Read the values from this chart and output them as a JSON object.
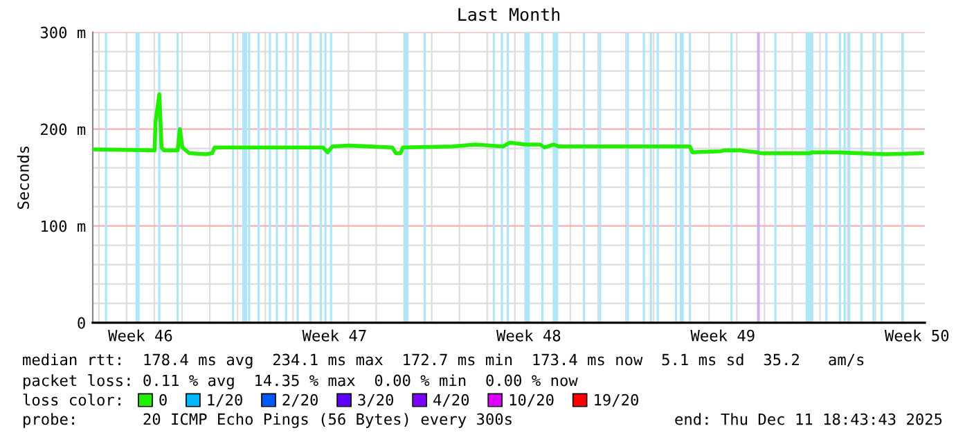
{
  "chart_data": {
    "type": "line",
    "title": "Last Month",
    "ylabel": "Seconds",
    "legend_title": "loss color:",
    "xlim": [
      "2025-11-11T18:43",
      "2025-12-11T18:43"
    ],
    "ylim": [
      0,
      300
    ],
    "xticks": [
      {
        "value": "2025-11-12T00:00",
        "label": null
      },
      {
        "value": "2025-11-13T00:00",
        "label": null
      },
      {
        "value": "2025-11-13T12:00",
        "label": "Week 46"
      },
      {
        "value": "2025-11-14T00:00",
        "label": null
      },
      {
        "value": "2025-11-15T00:00",
        "label": null
      },
      {
        "value": "2025-11-16T00:00",
        "label": null
      },
      {
        "value": "2025-11-17T00:00",
        "label": null
      },
      {
        "value": "2025-11-18T00:00",
        "label": null
      },
      {
        "value": "2025-11-19T00:00",
        "label": null
      },
      {
        "value": "2025-11-20T00:00",
        "label": null
      },
      {
        "value": "2025-11-20T12:00",
        "label": "Week 47"
      },
      {
        "value": "2025-11-21T00:00",
        "label": null
      },
      {
        "value": "2025-11-22T00:00",
        "label": null
      },
      {
        "value": "2025-11-23T00:00",
        "label": null
      },
      {
        "value": "2025-11-24T00:00",
        "label": null
      },
      {
        "value": "2025-11-25T00:00",
        "label": null
      },
      {
        "value": "2025-11-26T00:00",
        "label": null
      },
      {
        "value": "2025-11-27T00:00",
        "label": null
      },
      {
        "value": "2025-11-27T12:00",
        "label": "Week 48"
      },
      {
        "value": "2025-11-28T00:00",
        "label": null
      },
      {
        "value": "2025-11-29T00:00",
        "label": null
      },
      {
        "value": "2025-11-30T00:00",
        "label": null
      },
      {
        "value": "2025-12-01T00:00",
        "label": null
      },
      {
        "value": "2025-12-02T00:00",
        "label": null
      },
      {
        "value": "2025-12-03T00:00",
        "label": null
      },
      {
        "value": "2025-12-04T00:00",
        "label": null
      },
      {
        "value": "2025-12-04T12:00",
        "label": "Week 49"
      },
      {
        "value": "2025-12-05T00:00",
        "label": null
      },
      {
        "value": "2025-12-06T00:00",
        "label": null
      },
      {
        "value": "2025-12-07T00:00",
        "label": null
      },
      {
        "value": "2025-12-08T00:00",
        "label": null
      },
      {
        "value": "2025-12-09T00:00",
        "label": null
      },
      {
        "value": "2025-12-10T00:00",
        "label": null
      },
      {
        "value": "2025-12-11T00:00",
        "label": null
      },
      {
        "value": "2025-12-11T12:00",
        "label": "Week 50"
      }
    ],
    "yticks": [
      0,
      {
        "value": 20,
        "label": null
      },
      {
        "value": 40,
        "label": null
      },
      {
        "value": 60,
        "label": null
      },
      {
        "value": 80,
        "label": null
      },
      {
        "value": 100,
        "label": "100 m"
      },
      {
        "value": 120,
        "label": null
      },
      {
        "value": 140,
        "label": null
      },
      {
        "value": 160,
        "label": null
      },
      {
        "value": 180,
        "label": null
      },
      {
        "value": 200,
        "label": "200 m"
      },
      {
        "value": 220,
        "label": null
      },
      {
        "value": 240,
        "label": null
      },
      {
        "value": 260,
        "label": null
      },
      {
        "value": 280,
        "label": null
      },
      {
        "value": 300,
        "label": "300 m"
      }
    ],
    "grid": true,
    "legend": "bottom",
    "series": [
      {
        "name": "0",
        "color": "#22ee00",
        "x": [
          "2025-11-11T19:00",
          "2025-11-14T00:15",
          "2025-11-14T01:00",
          "2025-11-14T04:20",
          "2025-11-14T06:15",
          "2025-11-14T08:10",
          "2025-11-14T20:10",
          "2025-11-14T22:05",
          "2025-11-15T00:15",
          "2025-11-15T06:15",
          "2025-11-15T20:10",
          "2025-11-16T02:10",
          "2025-11-16T04:05",
          "2025-11-20T01:55",
          "2025-11-20T06:00",
          "2025-11-20T10:05",
          "2025-11-21T00:00",
          "2025-11-22T13:55",
          "2025-11-22T17:00",
          "2025-11-22T21:05",
          "2025-11-22T23:00",
          "2025-11-24T18:00",
          "2025-11-25T13:40",
          "2025-11-26T13:40",
          "2025-11-26T19:40",
          "2025-11-27T08:55",
          "2025-11-27T21:50",
          "2025-11-28T01:40",
          "2025-11-28T09:50",
          "2025-11-28T13:40",
          "2025-11-30T17:45",
          "2025-12-01T21:35",
          "2025-12-03T07:25",
          "2025-12-03T09:35",
          "2025-12-04T09:35",
          "2025-12-04T13:25",
          "2025-12-05T03:20",
          "2025-12-05T09:20",
          "2025-12-05T17:30",
          "2025-12-05T21:20",
          "2025-12-07T15:20",
          "2025-12-07T17:30",
          "2025-12-08T13:25",
          "2025-12-09T11:15",
          "2025-12-10T09:20",
          "2025-12-11T16:20"
        ],
        "values": [
          179,
          178,
          207,
          236,
          181,
          178,
          178,
          200,
          181,
          175,
          174,
          175,
          181,
          181,
          176,
          182,
          183,
          181,
          175,
          175,
          181,
          182,
          184,
          182,
          186,
          184,
          184,
          181,
          184,
          182,
          182,
          182,
          182,
          176,
          177,
          178,
          178,
          177,
          176,
          175,
          175,
          176,
          176,
          175,
          174,
          175
        ]
      },
      {
        "name": "1/20",
        "color": "#00b8ff"
      },
      {
        "name": "2/20",
        "color": "#0059ff"
      },
      {
        "name": "3/20",
        "color": "#5e00ff"
      },
      {
        "name": "4/20",
        "color": "#7e00ff"
      },
      {
        "name": "10/20",
        "color": "#dd00ff"
      },
      {
        "name": "19/20",
        "color": "#ff0000"
      }
    ],
    "bands": [
      {
        "axis": "x",
        "from": "2025-11-12T05:15",
        "to": "2025-11-12T07:10",
        "color": "#aee6f8"
      },
      {
        "axis": "x",
        "from": "2025-11-13T07:40",
        "to": "2025-11-13T11:15",
        "color": "#aee6f8"
      },
      {
        "axis": "x",
        "from": "2025-11-14T03:20",
        "to": "2025-11-14T05:15",
        "color": "#aee6f8"
      },
      {
        "axis": "x",
        "from": "2025-11-14T19:10",
        "to": "2025-11-14T21:05",
        "color": "#aee6f8"
      },
      {
        "axis": "x",
        "from": "2025-11-16T19:10",
        "to": "2025-11-16T21:05",
        "color": "#aee6f8"
      },
      {
        "axis": "x",
        "from": "2025-11-17T04:05",
        "to": "2025-11-17T08:10",
        "color": "#aee6f8"
      },
      {
        "axis": "x",
        "from": "2025-11-17T09:05",
        "to": "2025-11-17T11:00",
        "color": "#aee6f8"
      },
      {
        "axis": "x",
        "from": "2025-11-17T17:15",
        "to": "2025-11-17T19:10",
        "color": "#aee6f8"
      },
      {
        "axis": "x",
        "from": "2025-11-18T03:05",
        "to": "2025-11-18T05:00",
        "color": "#aee6f8"
      },
      {
        "axis": "x",
        "from": "2025-11-18T09:05",
        "to": "2025-11-18T11:00",
        "color": "#aee6f8"
      },
      {
        "axis": "x",
        "from": "2025-11-18T17:00",
        "to": "2025-11-18T18:55",
        "color": "#aee6f8"
      },
      {
        "axis": "x",
        "from": "2025-11-19T03:05",
        "to": "2025-11-19T05:00",
        "color": "#aee6f8"
      },
      {
        "axis": "x",
        "from": "2025-11-19T13:55",
        "to": "2025-11-19T16:05",
        "color": "#aee6f8"
      },
      {
        "axis": "x",
        "from": "2025-11-19T23:00",
        "to": "2025-11-20T01:00",
        "color": "#aee6f8"
      },
      {
        "axis": "x",
        "from": "2025-11-20T03:05",
        "to": "2025-11-20T05:00",
        "color": "#aee6f8"
      },
      {
        "axis": "x",
        "from": "2025-11-20T07:55",
        "to": "2025-11-20T09:50",
        "color": "#aee6f8"
      },
      {
        "axis": "x",
        "from": "2025-11-23T00:00",
        "to": "2025-11-23T03:50",
        "color": "#aee6f8"
      },
      {
        "axis": "x",
        "from": "2025-11-23T17:00",
        "to": "2025-11-23T18:55",
        "color": "#aee6f8"
      },
      {
        "axis": "x",
        "from": "2025-11-26T04:50",
        "to": "2025-11-26T06:40",
        "color": "#aee6f8"
      },
      {
        "axis": "x",
        "from": "2025-11-26T11:45",
        "to": "2025-11-26T13:40",
        "color": "#aee6f8"
      },
      {
        "axis": "x",
        "from": "2025-11-26T16:50",
        "to": "2025-11-26T18:45",
        "color": "#aee6f8"
      },
      {
        "axis": "x",
        "from": "2025-11-27T08:10",
        "to": "2025-11-27T12:55",
        "color": "#aee6f8"
      },
      {
        "axis": "x",
        "from": "2025-11-27T22:50",
        "to": "2025-11-28T00:45",
        "color": "#aee6f8"
      },
      {
        "axis": "x",
        "from": "2025-11-28T08:40",
        "to": "2025-11-28T13:25",
        "color": "#aee6f8"
      },
      {
        "axis": "x",
        "from": "2025-11-29T10:50",
        "to": "2025-11-29T12:45",
        "color": "#aee6f8"
      },
      {
        "axis": "x",
        "from": "2025-11-30T00:45",
        "to": "2025-11-30T02:40",
        "color": "#aee6f8"
      },
      {
        "axis": "x",
        "from": "2025-12-01T00:45",
        "to": "2025-12-01T02:40",
        "color": "#aee6f8"
      },
      {
        "axis": "x",
        "from": "2025-12-01T14:40",
        "to": "2025-12-01T16:35",
        "color": "#aee6f8"
      },
      {
        "axis": "x",
        "from": "2025-12-01T20:40",
        "to": "2025-12-01T22:35",
        "color": "#aee6f8"
      },
      {
        "axis": "x",
        "from": "2025-12-02T02:40",
        "to": "2025-12-02T04:35",
        "color": "#aee6f8"
      },
      {
        "axis": "x",
        "from": "2025-12-02T18:30",
        "to": "2025-12-02T20:25",
        "color": "#aee6f8"
      },
      {
        "axis": "x",
        "from": "2025-12-02T22:35",
        "to": "2025-12-03T02:10",
        "color": "#aee6f8"
      },
      {
        "axis": "x",
        "from": "2025-12-03T06:30",
        "to": "2025-12-03T08:25",
        "color": "#aee6f8"
      },
      {
        "axis": "x",
        "from": "2025-12-04T18:30",
        "to": "2025-12-04T20:25",
        "color": "#aee6f8"
      },
      {
        "axis": "x",
        "from": "2025-12-05T17:30",
        "to": "2025-12-05T19:55",
        "color": "#c8b0f8"
      },
      {
        "axis": "x",
        "from": "2025-12-06T08:25",
        "to": "2025-12-06T10:20",
        "color": "#aee6f8"
      },
      {
        "axis": "x",
        "from": "2025-12-07T11:30",
        "to": "2025-12-07T18:15",
        "color": "#aee6f8"
      },
      {
        "axis": "x",
        "from": "2025-12-08T04:35",
        "to": "2025-12-08T06:30",
        "color": "#aee6f8"
      },
      {
        "axis": "x",
        "from": "2025-12-08T16:20",
        "to": "2025-12-08T18:15",
        "color": "#aee6f8"
      },
      {
        "axis": "x",
        "from": "2025-12-08T20:25",
        "to": "2025-12-08T22:20",
        "color": "#aee6f8"
      },
      {
        "axis": "x",
        "from": "2025-12-09T00:15",
        "to": "2025-12-09T02:10",
        "color": "#aee6f8"
      },
      {
        "axis": "x",
        "from": "2025-12-09T11:00",
        "to": "2025-12-09T12:55",
        "color": "#aee6f8"
      },
      {
        "axis": "x",
        "from": "2025-12-09T21:20",
        "to": "2025-12-09T23:15",
        "color": "#aee6f8"
      },
      {
        "axis": "x",
        "from": "2025-12-10T04:20",
        "to": "2025-12-10T06:15",
        "color": "#aee6f8"
      },
      {
        "axis": "x",
        "from": "2025-12-10T22:20",
        "to": "2025-12-11T00:15",
        "color": "#aee6f8"
      }
    ],
    "annotations": [
      "median rtt:  178.4 ms avg  234.1 ms max  172.7 ms min  173.4 ms now  5.1 ms sd  35.2   am/s",
      "packet loss: 0.11 % avg  14.35 % max  0.00 % min  0.00 % now",
      "probe:       20 ICMP Echo Pings (56 Bytes) every 300s",
      "end: Thu Dec 11 18:43:43 2025"
    ]
  }
}
